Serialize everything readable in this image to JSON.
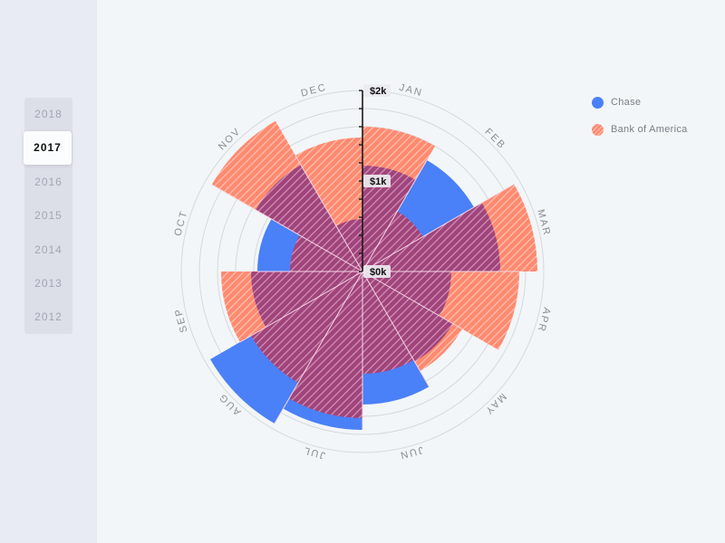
{
  "sidebar": {
    "years": [
      "2018",
      "2017",
      "2016",
      "2015",
      "2014",
      "2013",
      "2012"
    ],
    "selected_year": "2017"
  },
  "legend": {
    "items": [
      {
        "label": "Chase",
        "color": "#4a80f8",
        "pattern": "solid"
      },
      {
        "label": "Bank of America",
        "color": "#ff8a70",
        "pattern": "hatched"
      }
    ]
  },
  "colors": {
    "chase": "#4a80f8",
    "bofa": "#ff8a70",
    "overlap": "#a0457c",
    "background": "#f2f6f8",
    "grid": "#d6d9dd",
    "axis": "#1a1a1a"
  },
  "axis": {
    "tick_labels": [
      "$0k",
      "$1k",
      "$2k"
    ]
  },
  "chart_data": {
    "type": "polar-area",
    "title": "",
    "categories": [
      "JAN",
      "FEB",
      "MAR",
      "APR",
      "MAY",
      "JUN",
      "JUL",
      "AUG",
      "SEP",
      "OCT",
      "NOV",
      "DEC"
    ],
    "series": [
      {
        "name": "Chase",
        "values": [
          1.17,
          1.42,
          1.52,
          0.98,
          1.15,
          1.47,
          1.75,
          1.94,
          1.23,
          1.16,
          1.36,
          0.58
        ]
      },
      {
        "name": "Bank of America",
        "values": [
          1.6,
          0.77,
          1.93,
          1.73,
          1.27,
          1.13,
          1.62,
          1.42,
          1.56,
          0.8,
          1.92,
          1.48
        ]
      }
    ],
    "unit": "$k",
    "rlim": [
      0,
      2
    ],
    "radial_tick_labels": [
      "$0k",
      "$1k",
      "$2k"
    ],
    "grid": true,
    "legend_position": "top-right",
    "year": "2017"
  }
}
